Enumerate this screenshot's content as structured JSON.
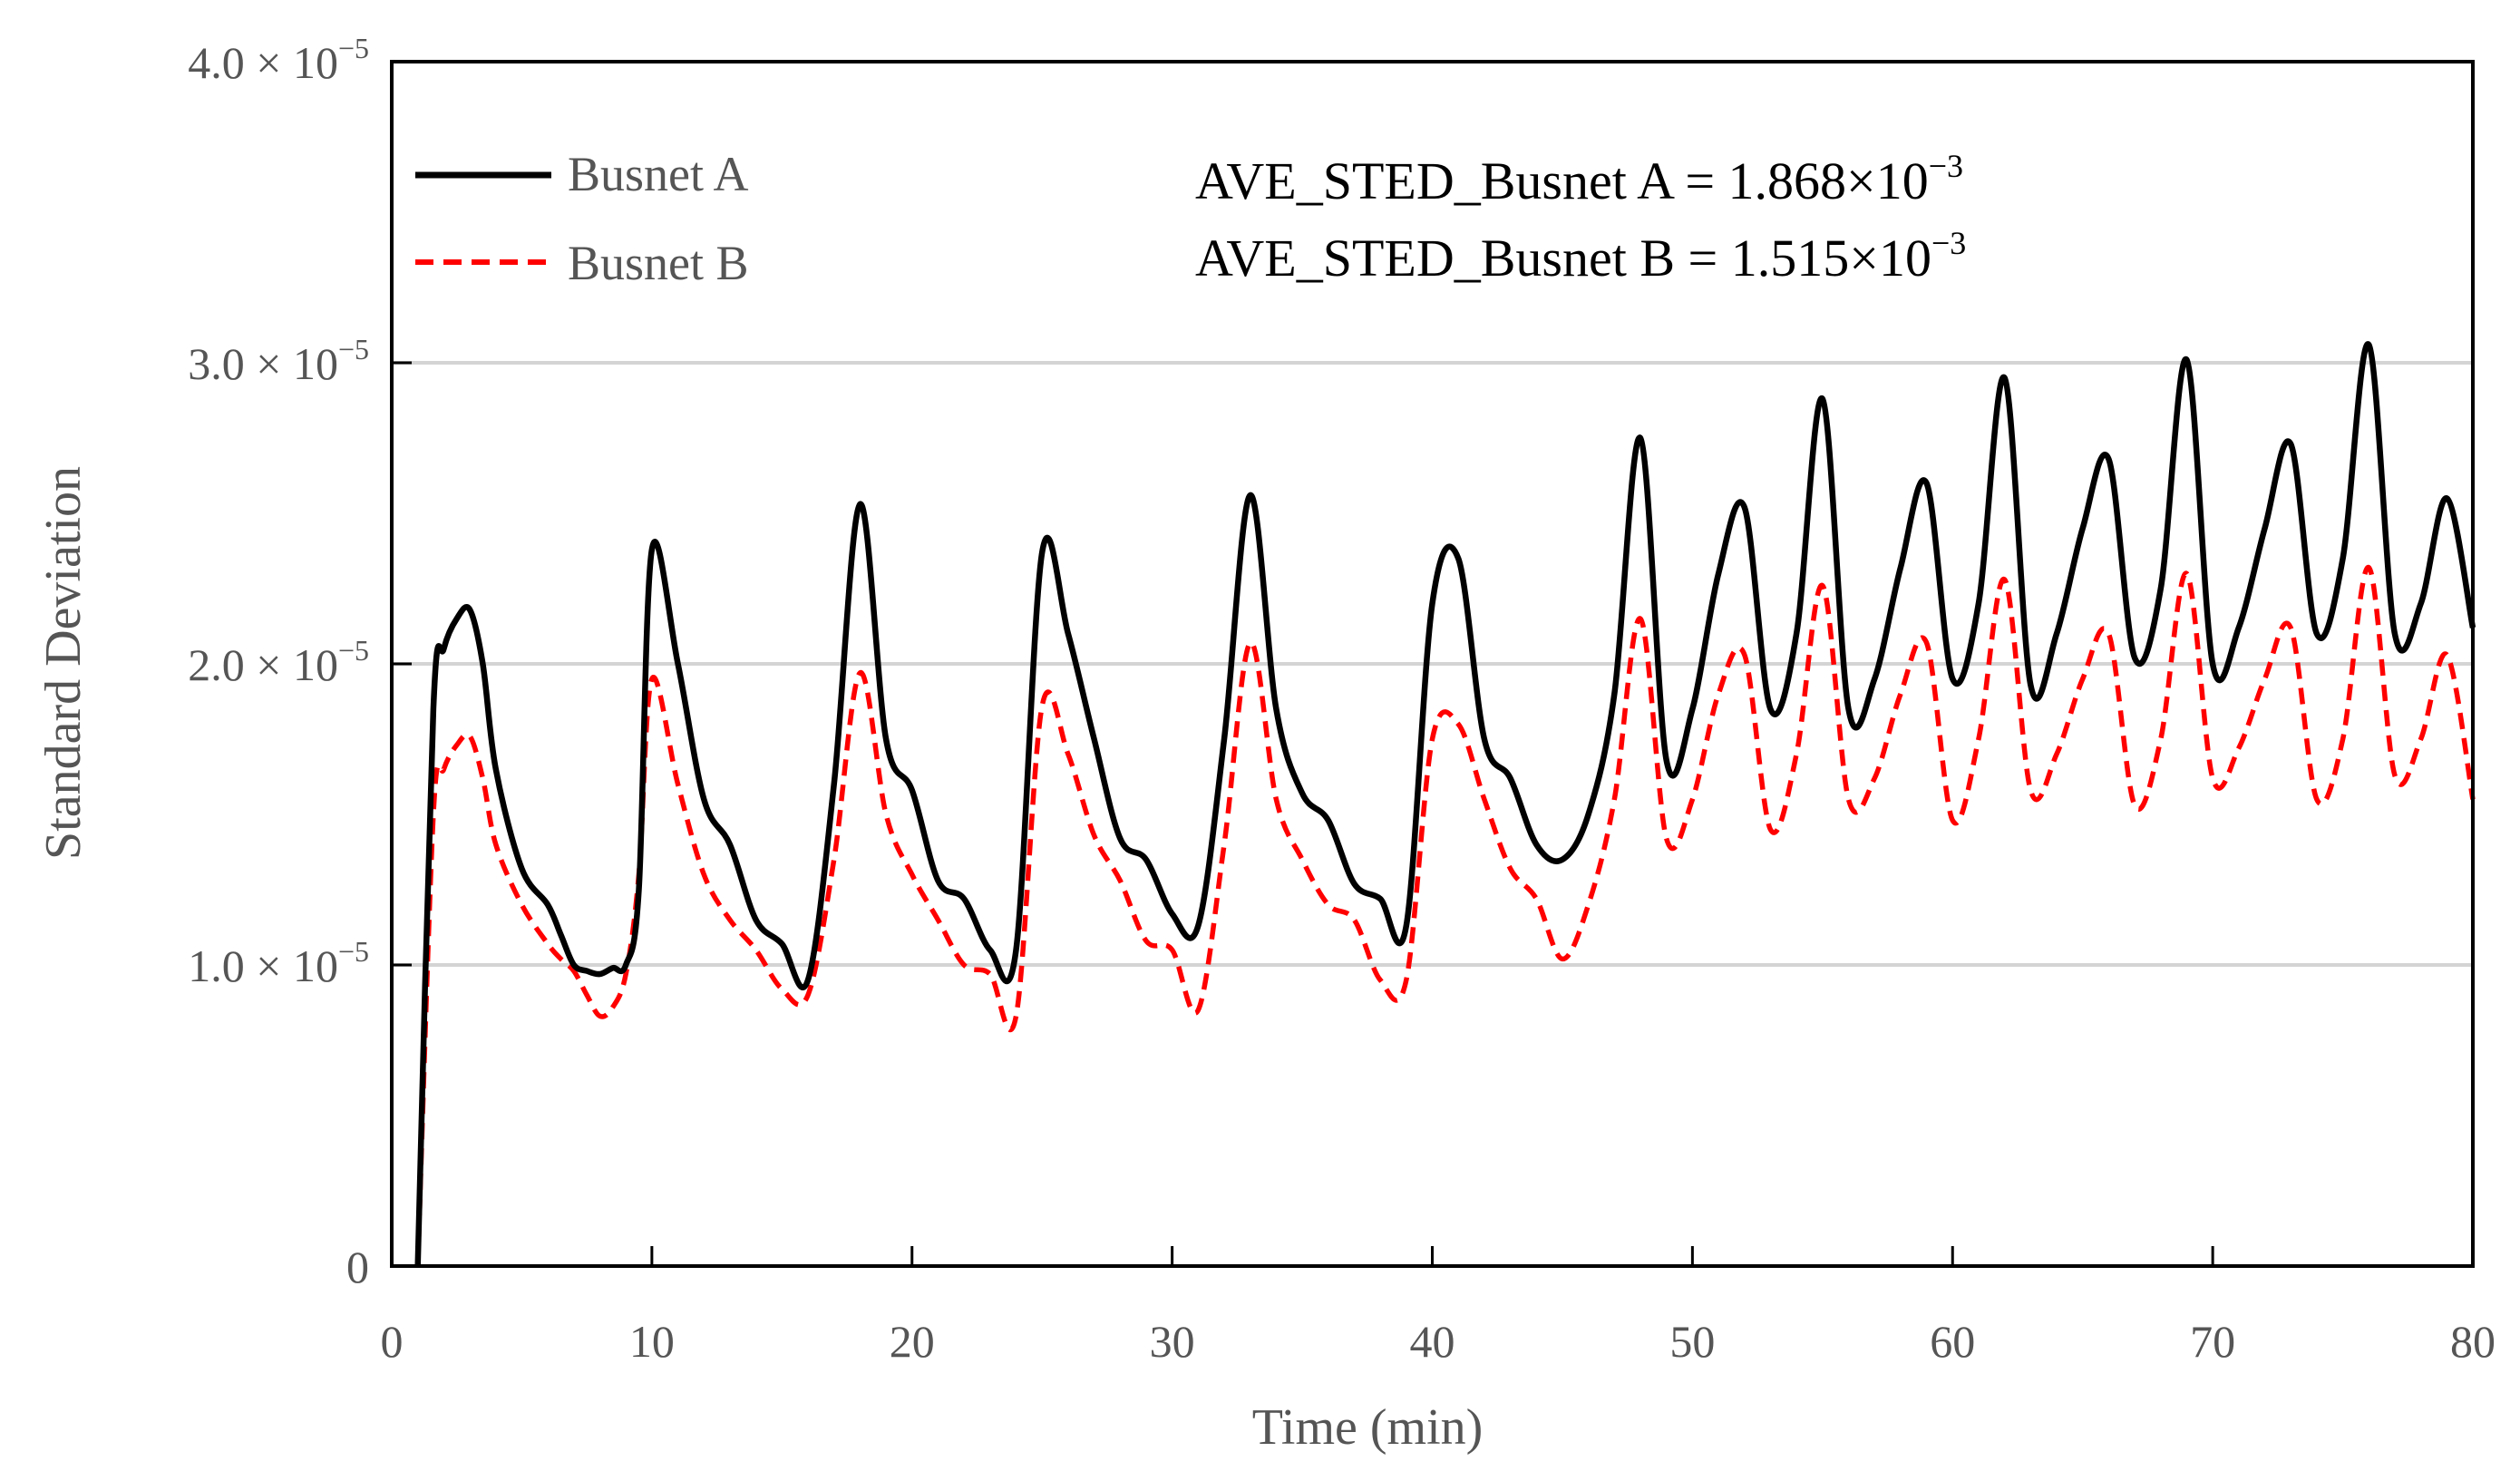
{
  "chart_data": {
    "type": "line",
    "title": "",
    "xlabel": "Time (min)",
    "ylabel": "Standard Deviation",
    "xlim": [
      0,
      80
    ],
    "ylim": [
      0,
      4e-05
    ],
    "x_ticks": [
      0,
      10,
      20,
      30,
      40,
      50,
      60,
      70,
      80
    ],
    "x_tick_labels": [
      "0",
      "10",
      "20",
      "30",
      "40",
      "50",
      "60",
      "70",
      "80"
    ],
    "y_ticks": [
      0,
      1e-05,
      2e-05,
      3e-05,
      4e-05
    ],
    "y_tick_labels": [
      {
        "mantissa": "0",
        "exponent": ""
      },
      {
        "mantissa": "1.0 × 10",
        "exponent": "−5"
      },
      {
        "mantissa": "2.0 × 10",
        "exponent": "−5"
      },
      {
        "mantissa": "3.0 × 10",
        "exponent": "−5"
      },
      {
        "mantissa": "4.0 × 10",
        "exponent": "−5"
      }
    ],
    "grid": "horizontal",
    "legend_position": "top-left",
    "annotations": [
      {
        "text": "AVE_STED_Busnet A = 1.868×10",
        "exponent": "−3"
      },
      {
        "text": "AVE_STED_Busnet B = 1.515×10",
        "exponent": "−3"
      }
    ],
    "series": [
      {
        "name": "Busnet A",
        "color": "#000000",
        "style": "solid",
        "x": [
          1,
          1.6,
          2,
          2.5,
          3,
          3.5,
          4,
          5,
          6,
          6.5,
          7,
          7.5,
          8,
          8.5,
          9,
          9.5,
          10,
          11,
          12,
          13,
          14,
          15,
          16,
          17,
          18,
          19,
          20,
          21,
          22,
          23,
          24,
          25,
          26,
          27,
          28,
          29,
          30,
          31,
          32,
          33,
          34,
          35,
          36,
          37,
          38,
          39,
          40,
          41,
          42,
          43,
          44,
          45,
          46,
          47,
          48,
          49,
          50,
          51,
          52,
          53,
          54,
          55,
          56,
          57,
          58,
          59,
          60,
          61,
          62,
          63,
          64,
          65,
          66,
          67,
          68,
          69,
          70,
          71,
          72,
          73,
          74,
          75,
          76,
          77,
          78,
          79,
          80
        ],
        "values": [
          0,
          1.85e-05,
          2.05e-05,
          2.15e-05,
          2.18e-05,
          2e-05,
          1.65e-05,
          1.32e-05,
          1.2e-05,
          1.1e-05,
          1e-05,
          9.8e-06,
          9.7e-06,
          9.9e-06,
          1e-05,
          1.25e-05,
          2.38e-05,
          2e-05,
          1.55e-05,
          1.4e-05,
          1.15e-05,
          1.07e-05,
          9.5e-06,
          1.6e-05,
          2.53e-05,
          1.75e-05,
          1.58e-05,
          1.28e-05,
          1.22e-05,
          1.05e-05,
          1.05e-05,
          2.37e-05,
          2.1e-05,
          1.75e-05,
          1.42e-05,
          1.35e-05,
          1.17e-05,
          1.13e-05,
          1.75e-05,
          2.56e-05,
          1.85e-05,
          1.57e-05,
          1.48e-05,
          1.27e-05,
          1.22e-05,
          1.13e-05,
          2.2e-05,
          2.35e-05,
          1.75e-05,
          1.62e-05,
          1.4e-05,
          1.35e-05,
          1.5e-05,
          1.9e-05,
          2.75e-05,
          1.68e-05,
          1.85e-05,
          2.3e-05,
          2.52e-05,
          1.85e-05,
          2.1e-05,
          2.88e-05,
          1.85e-05,
          1.95e-05,
          2.32e-05,
          2.6e-05,
          1.95e-05,
          2.2e-05,
          2.95e-05,
          1.93e-05,
          2.1e-05,
          2.45e-05,
          2.68e-05,
          2.02e-05,
          2.25e-05,
          3.01e-05,
          2e-05,
          2.12e-05,
          2.45e-05,
          2.73e-05,
          2.1e-05,
          2.35e-05,
          3.06e-05,
          2.1e-05,
          2.2e-05,
          2.55e-05,
          2.12e-05
        ]
      },
      {
        "name": "Busnet B",
        "color": "#ff0000",
        "style": "dashed",
        "x": [
          1,
          1.6,
          2,
          2.5,
          3,
          3.5,
          4,
          5,
          6,
          6.5,
          7,
          7.5,
          8,
          8.5,
          9,
          9.5,
          10,
          11,
          12,
          13,
          14,
          15,
          16,
          17,
          18,
          19,
          20,
          21,
          22,
          23,
          24,
          25,
          26,
          27,
          28,
          29,
          30,
          31,
          32,
          33,
          34,
          35,
          36,
          37,
          38,
          39,
          40,
          41,
          42,
          43,
          44,
          45,
          46,
          47,
          48,
          49,
          50,
          51,
          52,
          53,
          54,
          55,
          56,
          57,
          58,
          59,
          60,
          61,
          62,
          63,
          64,
          65,
          66,
          67,
          68,
          69,
          70,
          71,
          72,
          73,
          74,
          75,
          76,
          77,
          78,
          79,
          80
        ],
        "values": [
          0,
          1.5e-05,
          1.65e-05,
          1.73e-05,
          1.76e-05,
          1.62e-05,
          1.4e-05,
          1.2e-05,
          1.07e-05,
          1.02e-05,
          9.8e-06,
          9e-06,
          8.3e-06,
          8.6e-06,
          9.7e-06,
          1.3e-05,
          1.95e-05,
          1.6e-05,
          1.3e-05,
          1.15e-05,
          1.05e-05,
          9.2e-06,
          9e-06,
          1.35e-05,
          1.97e-05,
          1.5e-05,
          1.3e-05,
          1.15e-05,
          1e-05,
          9.7e-06,
          8.3e-06,
          1.86e-05,
          1.7e-05,
          1.43e-05,
          1.28e-05,
          1.08e-05,
          1.05e-05,
          8.5e-06,
          1.4e-05,
          2.07e-05,
          1.55e-05,
          1.35e-05,
          1.2e-05,
          1.15e-05,
          9.5e-06,
          9.5e-06,
          1.75e-05,
          1.8e-05,
          1.55e-05,
          1.32e-05,
          1.22e-05,
          1.02e-05,
          1.2e-05,
          1.55e-05,
          2.15e-05,
          1.42e-05,
          1.55e-05,
          1.9e-05,
          2.03e-05,
          1.45e-05,
          1.7e-05,
          2.26e-05,
          1.55e-05,
          1.62e-05,
          1.9e-05,
          2.07e-05,
          1.48e-05,
          1.75e-05,
          2.28e-05,
          1.58e-05,
          1.7e-05,
          1.95e-05,
          2.1e-05,
          1.53e-05,
          1.75e-05,
          2.3e-05,
          1.62e-05,
          1.72e-05,
          1.95e-05,
          2.12e-05,
          1.55e-05,
          1.75e-05,
          2.32e-05,
          1.63e-05,
          1.75e-05,
          2.03e-05,
          1.55e-05
        ]
      }
    ]
  }
}
